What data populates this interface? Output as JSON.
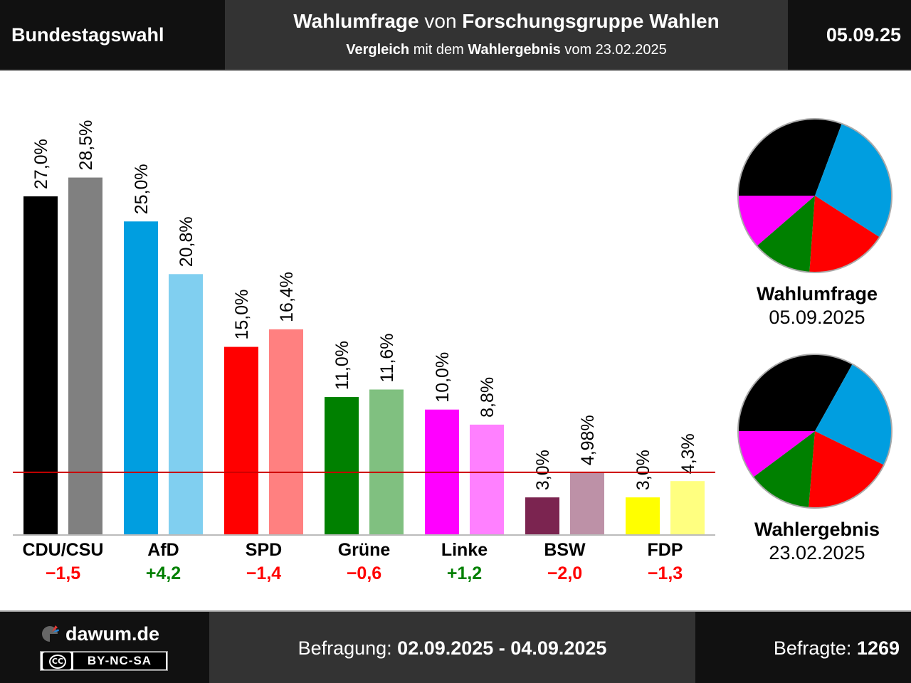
{
  "header": {
    "left": "Bundestagswahl",
    "title_a": "Wahlumfrage",
    "title_b": " von ",
    "title_c": "Forschungsgruppe Wahlen",
    "sub_a": "Vergleich",
    "sub_b": " mit dem ",
    "sub_c": "Wahlergebnis",
    "sub_d": " vom 23.02.2025",
    "right": "05.09.25"
  },
  "chart_data": {
    "type": "bar",
    "categories": [
      "CDU/CSU",
      "AfD",
      "SPD",
      "Grüne",
      "Linke",
      "BSW",
      "FDP"
    ],
    "series": [
      {
        "values": [
          27.0,
          25.0,
          15.0,
          11.0,
          10.0,
          3.0,
          3.0
        ],
        "labels": [
          "27,0%",
          "25,0%",
          "15,0%",
          "11,0%",
          "10,0%",
          "3,0%",
          "3,0%"
        ],
        "colors": [
          "#000000",
          "#009ee0",
          "#ff0000",
          "#008000",
          "#ff00ff",
          "#7b2450",
          "#ffff00"
        ]
      },
      {
        "values": [
          28.5,
          20.8,
          16.4,
          11.6,
          8.8,
          4.98,
          4.3
        ],
        "labels": [
          "28,5%",
          "20,8%",
          "16,4%",
          "11,6%",
          "8,8%",
          "4,98%",
          "4,3%"
        ],
        "colors": [
          "#808080",
          "#80cff0",
          "#ff8080",
          "#80c080",
          "#ff80ff",
          "#bd91a7",
          "#ffff80"
        ]
      }
    ],
    "diffs": [
      "−1,5",
      "+4,2",
      "−1,4",
      "−0,6",
      "+1,2",
      "−2,0",
      "−1,3"
    ],
    "diff_colors": [
      "#ff0000",
      "#008000",
      "#ff0000",
      "#ff0000",
      "#008000",
      "#ff0000",
      "#ff0000"
    ],
    "threshold": 5,
    "threshold_color": "#cc0000",
    "ylim": [
      0,
      30
    ]
  },
  "pies": [
    {
      "type": "pie",
      "title": "Wahlumfrage",
      "date": "05.09.2025",
      "values": [
        27.0,
        25.0,
        15.0,
        11.0,
        10.0
      ],
      "colors": [
        "#000000",
        "#009ee0",
        "#ff0000",
        "#008000",
        "#ff00ff"
      ]
    },
    {
      "type": "pie",
      "title": "Wahlergebnis",
      "date": "23.02.2025",
      "values": [
        28.5,
        20.8,
        16.4,
        11.6,
        8.8
      ],
      "colors": [
        "#000000",
        "#009ee0",
        "#ff0000",
        "#008000",
        "#ff00ff"
      ]
    }
  ],
  "footer": {
    "site": "dawum.de",
    "license_icon": "CC",
    "license": "BY-NC-SA",
    "survey_label": "Befragung: ",
    "survey_period": "02.09.2025 - 04.09.2025",
    "respondents_label": "Befragte: ",
    "respondents": "1269"
  }
}
